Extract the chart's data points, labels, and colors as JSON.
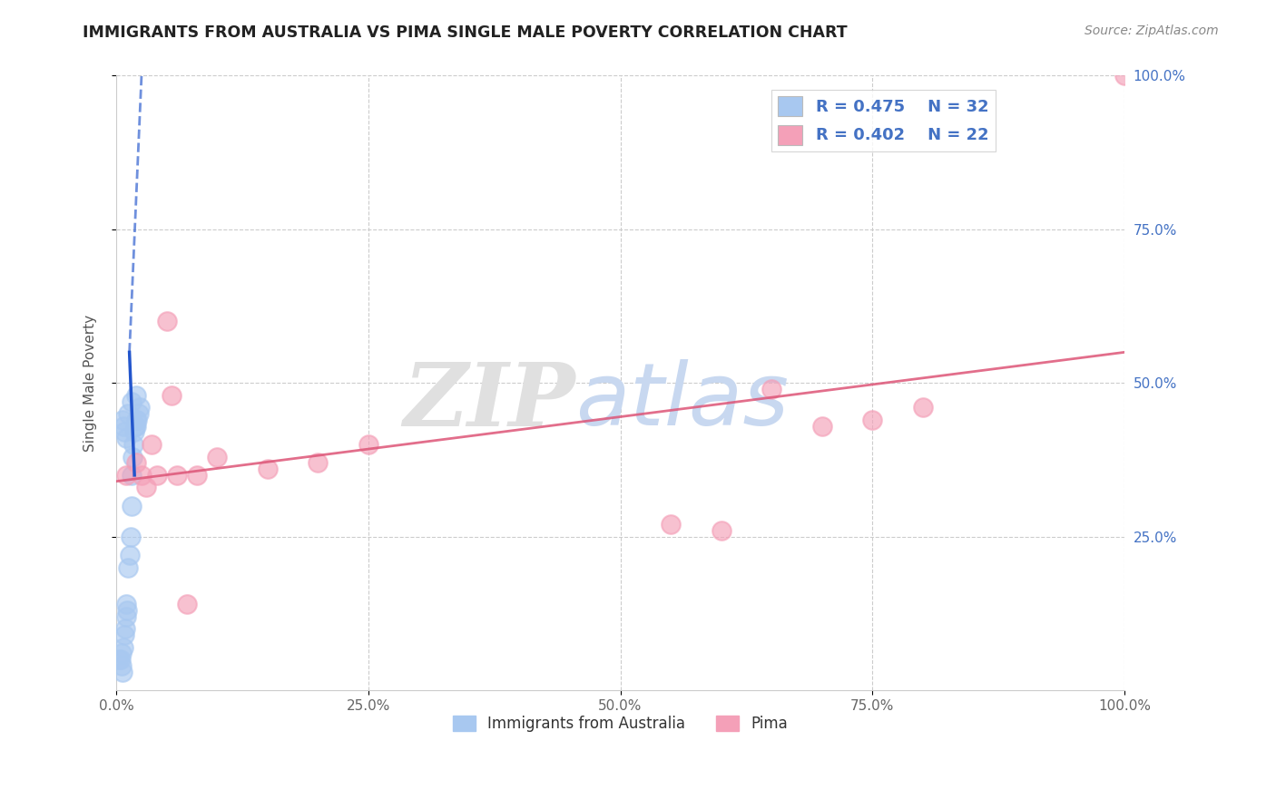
{
  "title": "IMMIGRANTS FROM AUSTRALIA VS PIMA SINGLE MALE POVERTY CORRELATION CHART",
  "source": "Source: ZipAtlas.com",
  "ylabel": "Single Male Poverty",
  "legend_blue_r": "R = 0.475",
  "legend_blue_n": "N = 32",
  "legend_pink_r": "R = 0.402",
  "legend_pink_n": "N = 22",
  "blue_color": "#a8c8f0",
  "pink_color": "#f4a0b8",
  "blue_line_color": "#2255cc",
  "pink_line_color": "#dd5577",
  "legend_label_color": "#4472c4",
  "blue_points_x": [
    0.3,
    0.5,
    0.6,
    0.7,
    0.8,
    0.9,
    1.0,
    1.0,
    1.1,
    1.2,
    1.3,
    1.4,
    1.5,
    1.5,
    1.6,
    1.7,
    1.8,
    1.9,
    2.0,
    2.0,
    2.1,
    2.2,
    2.3,
    0.4,
    0.5,
    0.6,
    0.7,
    0.8,
    1.0,
    1.2,
    1.5,
    2.0
  ],
  "blue_points_y": [
    5,
    4,
    3,
    7,
    9,
    10,
    12,
    14,
    13,
    20,
    22,
    25,
    30,
    35,
    38,
    40,
    42,
    43,
    43,
    44,
    44,
    45,
    46,
    5,
    6,
    44,
    43,
    42,
    41,
    45,
    47,
    48
  ],
  "pink_points_x": [
    1.0,
    2.0,
    2.5,
    3.0,
    4.0,
    5.0,
    6.0,
    7.0,
    8.0,
    15.0,
    20.0,
    25.0,
    55.0,
    60.0,
    65.0,
    70.0,
    75.0,
    80.0,
    3.5,
    5.5,
    10.0,
    100.0
  ],
  "pink_points_y": [
    35,
    37,
    35,
    33,
    35,
    60,
    35,
    14,
    35,
    36,
    37,
    40,
    27,
    26,
    49,
    43,
    44,
    46,
    40,
    48,
    38,
    100
  ],
  "blue_solid_x1": 1.8,
  "blue_solid_y1": 35,
  "blue_solid_x2": 1.3,
  "blue_solid_y2": 55,
  "blue_dash_x1": 1.3,
  "blue_dash_y1": 55,
  "blue_dash_x2": 2.5,
  "blue_dash_y2": 100,
  "pink_trend_x": [
    0,
    100
  ],
  "pink_trend_y": [
    34,
    55
  ],
  "xlim": [
    0,
    100
  ],
  "ylim": [
    0,
    100
  ],
  "xtick_pos": [
    0,
    25,
    50,
    75,
    100
  ],
  "xtick_labels": [
    "0.0%",
    "25.0%",
    "50.0%",
    "75.0%",
    "100.0%"
  ],
  "ytick_pos": [
    25,
    50,
    75,
    100
  ],
  "ytick_labels": [
    "25.0%",
    "50.0%",
    "75.0%",
    "100.0%"
  ],
  "background_color": "#ffffff",
  "grid_color": "#cccccc",
  "title_color": "#222222",
  "axis_label_color": "#555555",
  "tick_color": "#4472c4"
}
